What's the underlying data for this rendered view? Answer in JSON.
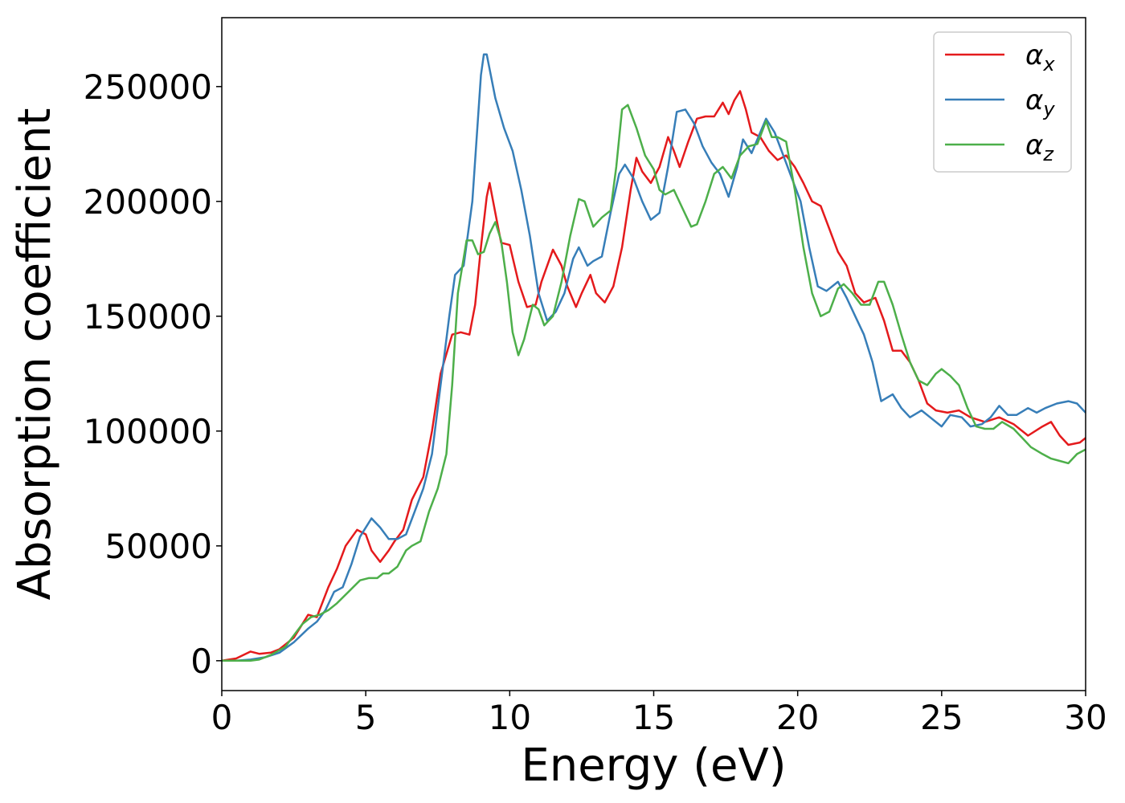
{
  "chart_data": {
    "type": "line",
    "xlabel": "Energy (eV)",
    "ylabel": "Absorption coefficient",
    "xlim": [
      0,
      30
    ],
    "ylim": [
      -13000,
      280000
    ],
    "xticks": [
      0,
      5,
      10,
      15,
      20,
      25,
      30
    ],
    "yticks": [
      0,
      50000,
      100000,
      150000,
      200000,
      250000
    ],
    "grid": false,
    "legend_position": "top-right",
    "series": [
      {
        "name": "α",
        "subscript": "x",
        "color": "#e41a1c",
        "points": [
          [
            0,
            0
          ],
          [
            0.5,
            1000
          ],
          [
            1,
            4000
          ],
          [
            1.3,
            3000
          ],
          [
            1.7,
            3500
          ],
          [
            2,
            5000
          ],
          [
            2.5,
            10000
          ],
          [
            3,
            20000
          ],
          [
            3.3,
            19000
          ],
          [
            3.7,
            32000
          ],
          [
            4,
            40000
          ],
          [
            4.3,
            50000
          ],
          [
            4.7,
            57000
          ],
          [
            5,
            55000
          ],
          [
            5.2,
            48000
          ],
          [
            5.5,
            43000
          ],
          [
            5.8,
            48000
          ],
          [
            6,
            52000
          ],
          [
            6.3,
            57000
          ],
          [
            6.6,
            70000
          ],
          [
            7,
            80000
          ],
          [
            7.3,
            100000
          ],
          [
            7.6,
            125000
          ],
          [
            8,
            142000
          ],
          [
            8.3,
            143000
          ],
          [
            8.6,
            142000
          ],
          [
            8.8,
            155000
          ],
          [
            9,
            180000
          ],
          [
            9.2,
            202000
          ],
          [
            9.3,
            208000
          ],
          [
            9.5,
            195000
          ],
          [
            9.7,
            182000
          ],
          [
            10,
            181000
          ],
          [
            10.3,
            165000
          ],
          [
            10.6,
            154000
          ],
          [
            10.9,
            155000
          ],
          [
            11.1,
            165000
          ],
          [
            11.5,
            179000
          ],
          [
            11.8,
            172000
          ],
          [
            12,
            163000
          ],
          [
            12.3,
            154000
          ],
          [
            12.5,
            160000
          ],
          [
            12.8,
            168000
          ],
          [
            13,
            160000
          ],
          [
            13.3,
            156000
          ],
          [
            13.6,
            163000
          ],
          [
            13.9,
            180000
          ],
          [
            14.2,
            205000
          ],
          [
            14.4,
            219000
          ],
          [
            14.6,
            213000
          ],
          [
            14.9,
            208000
          ],
          [
            15.2,
            215000
          ],
          [
            15.5,
            228000
          ],
          [
            15.7,
            222000
          ],
          [
            15.9,
            215000
          ],
          [
            16.2,
            226000
          ],
          [
            16.5,
            236000
          ],
          [
            16.8,
            237000
          ],
          [
            17.1,
            237000
          ],
          [
            17.4,
            243000
          ],
          [
            17.6,
            238000
          ],
          [
            17.8,
            244000
          ],
          [
            18,
            248000
          ],
          [
            18.2,
            240000
          ],
          [
            18.4,
            230000
          ],
          [
            18.7,
            228000
          ],
          [
            19,
            222000
          ],
          [
            19.3,
            218000
          ],
          [
            19.6,
            220000
          ],
          [
            19.9,
            215000
          ],
          [
            20.2,
            208000
          ],
          [
            20.5,
            200000
          ],
          [
            20.8,
            198000
          ],
          [
            21.1,
            188000
          ],
          [
            21.4,
            178000
          ],
          [
            21.7,
            172000
          ],
          [
            22,
            160000
          ],
          [
            22.3,
            156000
          ],
          [
            22.7,
            158000
          ],
          [
            23,
            148000
          ],
          [
            23.3,
            135000
          ],
          [
            23.6,
            135000
          ],
          [
            23.9,
            130000
          ],
          [
            24.2,
            122000
          ],
          [
            24.5,
            112000
          ],
          [
            24.8,
            109000
          ],
          [
            25.2,
            108000
          ],
          [
            25.6,
            109000
          ],
          [
            26,
            106000
          ],
          [
            26.5,
            104000
          ],
          [
            27,
            106000
          ],
          [
            27.5,
            103000
          ],
          [
            28,
            98000
          ],
          [
            28.5,
            102000
          ],
          [
            28.8,
            104000
          ],
          [
            29.1,
            98000
          ],
          [
            29.4,
            94000
          ],
          [
            29.8,
            95000
          ],
          [
            30,
            97000
          ]
        ]
      },
      {
        "name": "α",
        "subscript": "y",
        "color": "#377eb8",
        "points": [
          [
            0,
            0
          ],
          [
            0.5,
            0
          ],
          [
            1,
            500
          ],
          [
            1.5,
            1500
          ],
          [
            2,
            3500
          ],
          [
            2.5,
            8000
          ],
          [
            3,
            14000
          ],
          [
            3.3,
            17000
          ],
          [
            3.6,
            22000
          ],
          [
            3.9,
            30000
          ],
          [
            4.2,
            32000
          ],
          [
            4.5,
            42000
          ],
          [
            4.8,
            54000
          ],
          [
            5,
            58000
          ],
          [
            5.2,
            62000
          ],
          [
            5.5,
            58000
          ],
          [
            5.8,
            53000
          ],
          [
            6.1,
            53000
          ],
          [
            6.4,
            55000
          ],
          [
            6.7,
            65000
          ],
          [
            7,
            75000
          ],
          [
            7.3,
            90000
          ],
          [
            7.6,
            120000
          ],
          [
            7.9,
            150000
          ],
          [
            8.1,
            168000
          ],
          [
            8.4,
            172000
          ],
          [
            8.7,
            200000
          ],
          [
            9,
            255000
          ],
          [
            9.1,
            264000
          ],
          [
            9.2,
            264000
          ],
          [
            9.5,
            245000
          ],
          [
            9.8,
            232000
          ],
          [
            10.1,
            222000
          ],
          [
            10.4,
            205000
          ],
          [
            10.7,
            185000
          ],
          [
            11,
            160000
          ],
          [
            11.3,
            148000
          ],
          [
            11.6,
            152000
          ],
          [
            11.9,
            160000
          ],
          [
            12.2,
            175000
          ],
          [
            12.4,
            180000
          ],
          [
            12.7,
            172000
          ],
          [
            12.9,
            174000
          ],
          [
            13.2,
            176000
          ],
          [
            13.5,
            195000
          ],
          [
            13.8,
            212000
          ],
          [
            14,
            216000
          ],
          [
            14.3,
            210000
          ],
          [
            14.6,
            200000
          ],
          [
            14.9,
            192000
          ],
          [
            15.2,
            195000
          ],
          [
            15.5,
            215000
          ],
          [
            15.8,
            239000
          ],
          [
            16.1,
            240000
          ],
          [
            16.4,
            234000
          ],
          [
            16.7,
            224000
          ],
          [
            17,
            217000
          ],
          [
            17.3,
            212000
          ],
          [
            17.6,
            202000
          ],
          [
            17.9,
            215000
          ],
          [
            18.1,
            227000
          ],
          [
            18.4,
            221000
          ],
          [
            18.7,
            230000
          ],
          [
            18.9,
            236000
          ],
          [
            19.2,
            230000
          ],
          [
            19.5,
            220000
          ],
          [
            19.8,
            210000
          ],
          [
            20.1,
            200000
          ],
          [
            20.4,
            180000
          ],
          [
            20.7,
            163000
          ],
          [
            21,
            161000
          ],
          [
            21.4,
            165000
          ],
          [
            21.7,
            158000
          ],
          [
            22,
            150000
          ],
          [
            22.3,
            142000
          ],
          [
            22.6,
            130000
          ],
          [
            22.9,
            113000
          ],
          [
            23.3,
            116000
          ],
          [
            23.6,
            110000
          ],
          [
            23.9,
            106000
          ],
          [
            24.3,
            109000
          ],
          [
            24.6,
            106000
          ],
          [
            25,
            102000
          ],
          [
            25.3,
            107000
          ],
          [
            25.7,
            106000
          ],
          [
            26,
            102000
          ],
          [
            26.4,
            103000
          ],
          [
            26.7,
            106000
          ],
          [
            27,
            111000
          ],
          [
            27.3,
            107000
          ],
          [
            27.6,
            107000
          ],
          [
            28,
            110000
          ],
          [
            28.3,
            108000
          ],
          [
            28.6,
            110000
          ],
          [
            29,
            112000
          ],
          [
            29.4,
            113000
          ],
          [
            29.7,
            112000
          ],
          [
            30,
            108000
          ]
        ]
      },
      {
        "name": "α",
        "subscript": "z",
        "color": "#4daf4a",
        "points": [
          [
            0,
            0
          ],
          [
            0.5,
            0
          ],
          [
            1,
            0
          ],
          [
            1.3,
            500
          ],
          [
            1.7,
            2500
          ],
          [
            2.2,
            6000
          ],
          [
            2.5,
            11000
          ],
          [
            2.8,
            16000
          ],
          [
            3.1,
            19000
          ],
          [
            3.4,
            20000
          ],
          [
            3.7,
            22000
          ],
          [
            4,
            25000
          ],
          [
            4.4,
            30000
          ],
          [
            4.8,
            35000
          ],
          [
            5.1,
            36000
          ],
          [
            5.4,
            36000
          ],
          [
            5.6,
            38000
          ],
          [
            5.8,
            38000
          ],
          [
            6.1,
            41000
          ],
          [
            6.4,
            48000
          ],
          [
            6.6,
            50000
          ],
          [
            6.9,
            52000
          ],
          [
            7.2,
            65000
          ],
          [
            7.5,
            75000
          ],
          [
            7.8,
            90000
          ],
          [
            8,
            120000
          ],
          [
            8.2,
            160000
          ],
          [
            8.5,
            183000
          ],
          [
            8.7,
            183000
          ],
          [
            8.9,
            177000
          ],
          [
            9.1,
            178000
          ],
          [
            9.3,
            186000
          ],
          [
            9.5,
            191000
          ],
          [
            9.7,
            183000
          ],
          [
            9.9,
            165000
          ],
          [
            10.1,
            143000
          ],
          [
            10.3,
            133000
          ],
          [
            10.5,
            140000
          ],
          [
            10.8,
            155000
          ],
          [
            11,
            153000
          ],
          [
            11.2,
            146000
          ],
          [
            11.5,
            150000
          ],
          [
            11.8,
            165000
          ],
          [
            12.1,
            185000
          ],
          [
            12.4,
            201000
          ],
          [
            12.6,
            200000
          ],
          [
            12.9,
            189000
          ],
          [
            13.2,
            193000
          ],
          [
            13.5,
            196000
          ],
          [
            13.7,
            215000
          ],
          [
            13.9,
            240000
          ],
          [
            14.1,
            242000
          ],
          [
            14.4,
            232000
          ],
          [
            14.7,
            220000
          ],
          [
            15,
            214000
          ],
          [
            15.2,
            205000
          ],
          [
            15.4,
            203000
          ],
          [
            15.7,
            205000
          ],
          [
            16,
            197000
          ],
          [
            16.3,
            189000
          ],
          [
            16.5,
            190000
          ],
          [
            16.8,
            200000
          ],
          [
            17.1,
            212000
          ],
          [
            17.4,
            215000
          ],
          [
            17.7,
            210000
          ],
          [
            18,
            220000
          ],
          [
            18.3,
            224000
          ],
          [
            18.6,
            225000
          ],
          [
            18.9,
            235000
          ],
          [
            19.1,
            228000
          ],
          [
            19.3,
            228000
          ],
          [
            19.6,
            226000
          ],
          [
            19.9,
            205000
          ],
          [
            20.2,
            180000
          ],
          [
            20.5,
            160000
          ],
          [
            20.8,
            150000
          ],
          [
            21.1,
            152000
          ],
          [
            21.4,
            162000
          ],
          [
            21.6,
            164000
          ],
          [
            21.9,
            160000
          ],
          [
            22.2,
            155000
          ],
          [
            22.5,
            155000
          ],
          [
            22.8,
            165000
          ],
          [
            23,
            165000
          ],
          [
            23.3,
            155000
          ],
          [
            23.6,
            142000
          ],
          [
            23.9,
            130000
          ],
          [
            24.2,
            122000
          ],
          [
            24.5,
            120000
          ],
          [
            24.8,
            125000
          ],
          [
            25,
            127000
          ],
          [
            25.3,
            124000
          ],
          [
            25.6,
            120000
          ],
          [
            25.9,
            110000
          ],
          [
            26.2,
            102000
          ],
          [
            26.5,
            101000
          ],
          [
            26.8,
            101000
          ],
          [
            27.1,
            104000
          ],
          [
            27.5,
            101000
          ],
          [
            27.8,
            97000
          ],
          [
            28.1,
            93000
          ],
          [
            28.5,
            90000
          ],
          [
            28.8,
            88000
          ],
          [
            29.1,
            87000
          ],
          [
            29.4,
            86000
          ],
          [
            29.7,
            90000
          ],
          [
            30,
            92000
          ]
        ]
      }
    ]
  }
}
